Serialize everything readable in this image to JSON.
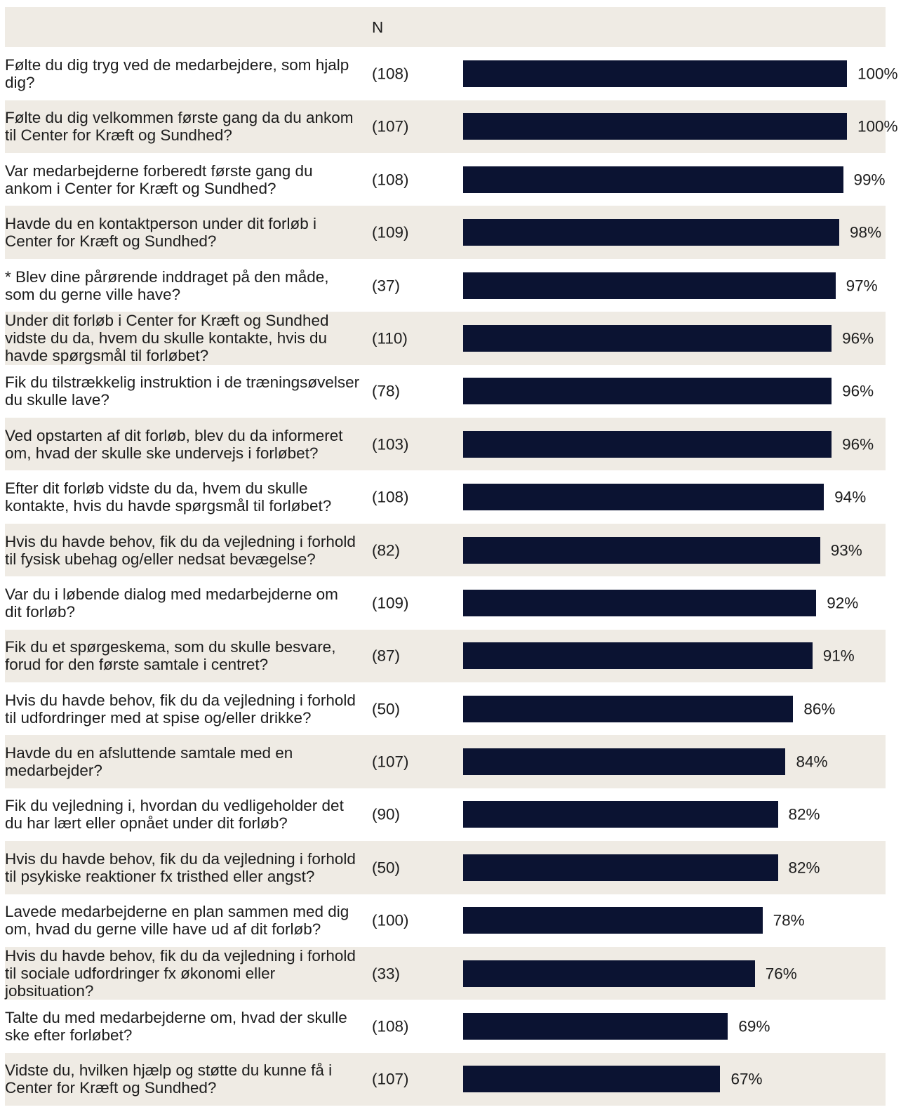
{
  "chart_data": {
    "type": "bar",
    "orientation": "horizontal",
    "n_header": "N",
    "categories": [
      "Følte du dig tryg ved de medarbejdere, som hjalp\ndig?",
      "Følte du dig velkommen første gang da du ankom\ntil Center for Kræft og Sundhed?",
      "Var medarbejderne forberedt første gang du\nankom i Center for Kræft og Sundhed?",
      "Havde du en kontaktperson under dit forløb i\nCenter for Kræft og Sundhed?",
      "* Blev dine pårørende inddraget på den måde,\nsom du gerne ville have?",
      "Under dit forløb i Center for Kræft og Sundhed\nvidste du da, hvem du skulle kontakte, hvis du\nhavde spørgsmål til forløbet?",
      "Fik du tilstrækkelig instruktion i de træningsøvelser\ndu skulle lave?",
      "Ved opstarten af dit forløb, blev du da informeret\nom, hvad der skulle ske undervejs i forløbet?",
      "Efter dit forløb vidste du da, hvem du skulle\nkontakte, hvis du havde spørgsmål til forløbet?",
      "Hvis du havde behov, fik du da vejledning i forhold\ntil fysisk ubehag og/eller nedsat bevægelse?",
      "Var du i løbende dialog med medarbejderne om\ndit forløb?",
      "Fik du et spørgeskema, som du skulle besvare,\nforud for den første samtale i centret?",
      "Hvis du havde behov, fik du da vejledning i forhold\ntil udfordringer med at spise og/eller drikke?",
      "Havde du en afsluttende samtale med en\nmedarbejder?",
      "Fik du vejledning i, hvordan du vedligeholder det\ndu har lært eller opnået under dit forløb?",
      "Hvis du havde behov, fik du da vejledning i forhold\ntil psykiske reaktioner fx tristhed eller angst?",
      "Lavede medarbejderne en plan sammen med dig\nom, hvad du gerne ville have ud af dit forløb?",
      "Hvis du havde behov, fik du da vejledning i forhold\ntil sociale udfordringer fx økonomi eller\njobsituation?",
      "Talte du med medarbejderne om, hvad der skulle\nske efter forløbet?",
      "Vidste du, hvilken hjælp og støtte du kunne få i\nCenter for Kræft og Sundhed?"
    ],
    "n": [
      "(108)",
      "(107)",
      "(108)",
      "(109)",
      "(37)",
      "(110)",
      "(78)",
      "(103)",
      "(108)",
      "(82)",
      "(109)",
      "(87)",
      "(50)",
      "(107)",
      "(90)",
      "(50)",
      "(100)",
      "(33)",
      "(108)",
      "(107)"
    ],
    "values": [
      100,
      100,
      99,
      98,
      97,
      96,
      96,
      96,
      94,
      93,
      92,
      91,
      86,
      84,
      82,
      82,
      78,
      76,
      69,
      67
    ],
    "value_labels": [
      "100%",
      "100%",
      "99%",
      "98%",
      "97%",
      "96%",
      "96%",
      "96%",
      "94%",
      "93%",
      "92%",
      "91%",
      "86%",
      "84%",
      "82%",
      "82%",
      "78%",
      "76%",
      "69%",
      "67%"
    ],
    "xlim": [
      0,
      100
    ],
    "grid": false,
    "colors": {
      "bar": "#0b1332",
      "band": "#efebe4",
      "text": "#1c1c1c"
    }
  }
}
